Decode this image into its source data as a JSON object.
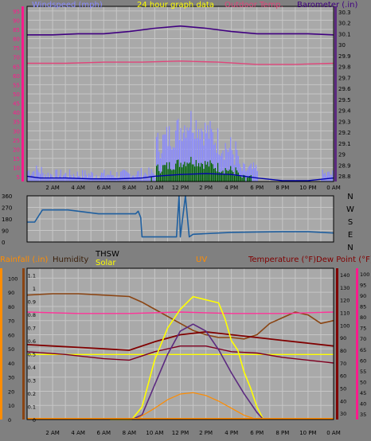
{
  "colors": {
    "background": "#808080",
    "plot": "#a9a9a9",
    "grid": "#c6c6c6",
    "border": "#000000",
    "tick_text": "#000000",
    "wind": "#8a8aff",
    "wind_dark": "#0000aa",
    "gust": "#006400",
    "barometer": "#400080",
    "outdoor_temp_top": "#e0457a",
    "direction": "#1f5f9f",
    "rain": "#ff8c00",
    "humidity": "#8b4513",
    "thsw": "#7f0020",
    "solar": "#ffff00",
    "uv": "#5c2a80",
    "temperature": "#800000",
    "dewpoint": "#ff3399",
    "pink_axis": "#ff1a8c"
  },
  "x_tick_labels": [
    "2 AM",
    "4 AM",
    "6 AM",
    "8 AM",
    "10 AM",
    "12 PM",
    "2 PM",
    "4 PM",
    "6 PM",
    "8 PM",
    "10 PM",
    "0 AM"
  ],
  "chart_data": [
    {
      "type": "line",
      "title": "24 hour graph data",
      "legend": [
        "Windspeed (mph)",
        "24 hour graph data",
        "Outdoor Temp.",
        "Barometer (.in)"
      ],
      "x_range": [
        0,
        24
      ],
      "y_left_ticks": [
        "5",
        "10",
        "15",
        "20",
        "25",
        "30",
        "35",
        "40",
        "45",
        "50",
        "55",
        "60",
        "65",
        "70",
        "75",
        "80",
        "85",
        "90",
        "95"
      ],
      "y_right_ticks": [
        "28.8",
        "28.9",
        "29",
        "29.1",
        "29.2",
        "29.3",
        "29.4",
        "29.5",
        "29.6",
        "29.7",
        "29.8",
        "29.9",
        "30",
        "30.1",
        "30.2",
        "30.3"
      ],
      "y_right_range": [
        28.75,
        30.35
      ],
      "series": [
        {
          "name": "Barometer (.in)",
          "x": [
            0,
            2,
            4,
            6,
            8,
            10,
            12,
            14,
            16,
            18,
            20,
            22,
            24
          ],
          "y": [
            30.09,
            30.09,
            30.1,
            30.1,
            30.12,
            30.15,
            30.17,
            30.15,
            30.12,
            30.1,
            30.1,
            30.1,
            30.09
          ]
        },
        {
          "name": "Outdoor Temp.",
          "x": [
            0,
            3,
            6,
            9,
            12,
            15,
            18,
            21,
            24
          ],
          "y": [
            29.83,
            29.83,
            29.84,
            29.84,
            29.85,
            29.84,
            29.82,
            29.82,
            29.83
          ]
        }
      ]
    },
    {
      "type": "line",
      "legend": [
        "N",
        "W",
        "S",
        "E",
        "N"
      ],
      "x_range": [
        0,
        24
      ],
      "y_ticks": [
        "360",
        "270",
        "180",
        "90",
        "0"
      ],
      "y_range": [
        0,
        360
      ],
      "series": [
        {
          "name": "Wind direction",
          "x": [
            0,
            0.6,
            1.2,
            3.2,
            5.6,
            8.5,
            8.7,
            8.9,
            9.0,
            9.4,
            11.7,
            11.9,
            12.0,
            12.4,
            12.7,
            13.0,
            14,
            16,
            18,
            20,
            22,
            24
          ],
          "y": [
            155,
            155,
            250,
            250,
            220,
            220,
            240,
            190,
            40,
            40,
            40,
            360,
            40,
            360,
            40,
            60,
            65,
            75,
            78,
            80,
            80,
            70
          ]
        }
      ]
    },
    {
      "type": "line",
      "legend": [
        "Rainfall (.in)",
        "Humidity",
        "THSW",
        "Solar",
        "UV",
        "Temperature (°F)",
        "Dew Point (°F)"
      ],
      "x_range": [
        0,
        24
      ],
      "y_left1_ticks": [
        "0",
        "10",
        "20",
        "30",
        "40",
        "50",
        "60",
        "70",
        "80",
        "90",
        "100"
      ],
      "y_left2_ticks": [
        "0",
        "0.1",
        "0.2",
        "0.3",
        "0.4",
        "0.5",
        "0.6",
        "0.7",
        "0.8",
        "0.9",
        "1",
        "1.1"
      ],
      "y_right1_ticks": [
        "30",
        "40",
        "50",
        "60",
        "70",
        "80",
        "90",
        "100",
        "110",
        "120",
        "130",
        "140"
      ],
      "y_right2_ticks": [
        "35",
        "40",
        "45",
        "50",
        "55",
        "60",
        "65",
        "70",
        "75",
        "80",
        "85",
        "90",
        "95",
        "100"
      ],
      "series": [
        {
          "name": "Humidity",
          "x": [
            0,
            2,
            4,
            6,
            8,
            9,
            10,
            11,
            12,
            13,
            14,
            15,
            16,
            17,
            18,
            19,
            20,
            21,
            22,
            23,
            24
          ],
          "y": [
            88,
            89,
            89,
            88,
            87,
            83,
            78,
            73,
            68,
            63,
            60,
            58,
            58,
            57,
            60,
            68,
            72,
            76,
            74,
            68,
            70
          ]
        },
        {
          "name": "Dew Point (°F)",
          "x": [
            0,
            4,
            8,
            12,
            16,
            20,
            24
          ],
          "y": [
            76,
            75,
            75,
            76,
            75,
            75,
            76
          ]
        },
        {
          "name": "Temperature (°F)",
          "x": [
            0,
            2,
            4,
            6,
            8,
            10,
            12,
            14,
            16,
            18,
            20,
            22,
            24
          ],
          "y": [
            53,
            52,
            51,
            50,
            49,
            55,
            60,
            62,
            60,
            58,
            56,
            54,
            52
          ]
        },
        {
          "name": "THSW",
          "x": [
            0,
            3,
            6,
            8,
            10,
            12,
            14,
            16,
            18,
            20,
            24
          ],
          "y": [
            48,
            46,
            43,
            42,
            48,
            52,
            52,
            48,
            47,
            44,
            40
          ]
        },
        {
          "name": "Solar",
          "x": [
            6.5,
            8.2,
            9,
            10,
            11,
            12,
            13,
            14,
            15,
            15.5,
            16,
            16.5,
            17,
            17.5,
            18,
            18.5
          ],
          "y": [
            0,
            0,
            40,
            190,
            290,
            350,
            390,
            380,
            370,
            320,
            250,
            220,
            150,
            100,
            40,
            0
          ]
        },
        {
          "name": "UV",
          "x": [
            8.2,
            9,
            10,
            11,
            12,
            13,
            14,
            15,
            16,
            17,
            18,
            18.5
          ],
          "y": [
            0,
            0.2,
            1.5,
            2.8,
            3.8,
            4.1,
            3.8,
            3.0,
            2.0,
            1.1,
            0.3,
            0
          ]
        },
        {
          "name": "Rainfall (.in)",
          "x": [
            0,
            24
          ],
          "y": [
            0,
            0
          ]
        }
      ]
    }
  ]
}
